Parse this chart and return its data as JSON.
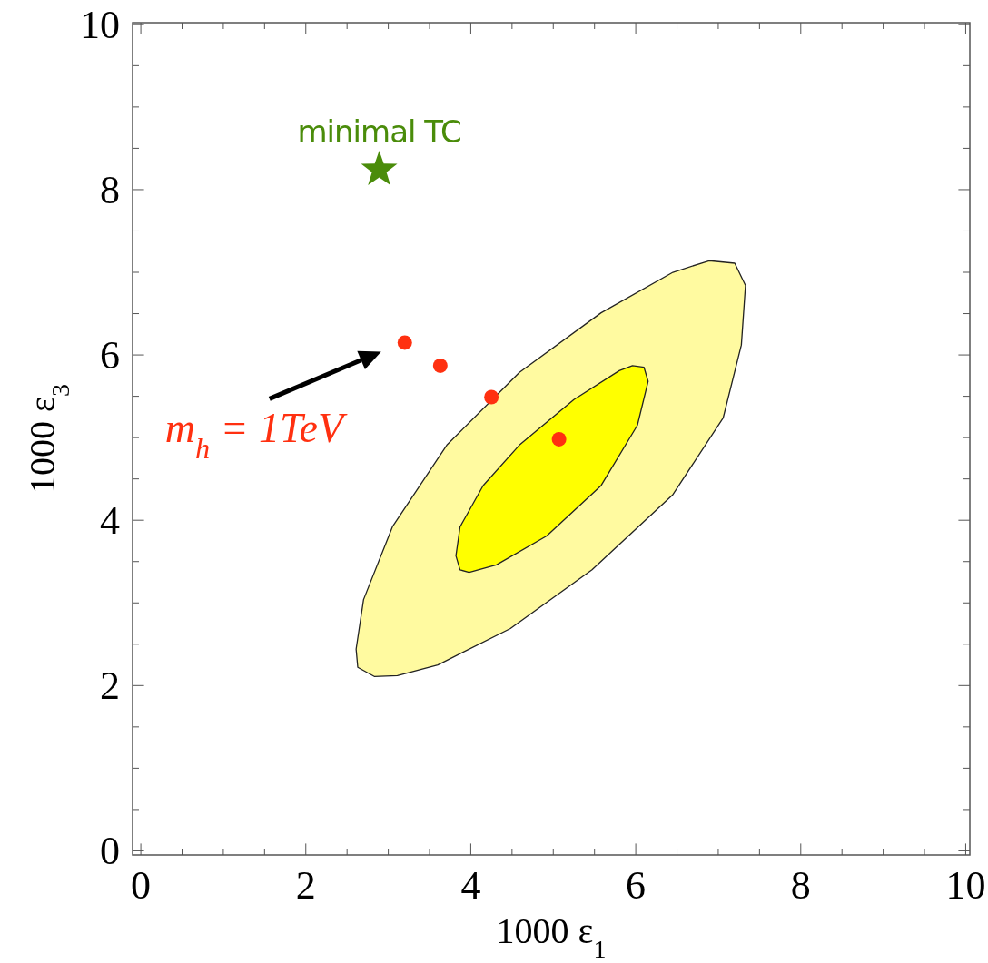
{
  "chart_data": {
    "type": "scatter",
    "xlabel": "1000 ε$_{1}$",
    "ylabel": "1000 ε$_{3}$",
    "xlim": [
      -0.1,
      10.05
    ],
    "ylim": [
      -0.05,
      10.02
    ],
    "xticks": [
      0,
      {
        "value": 0.5,
        "label": null
      },
      {
        "value": 1,
        "label": null
      },
      {
        "value": 1.5,
        "label": null
      },
      2,
      {
        "value": 2.5,
        "label": null
      },
      {
        "value": 3,
        "label": null
      },
      {
        "value": 3.5,
        "label": null
      },
      4,
      {
        "value": 4.5,
        "label": null
      },
      {
        "value": 5,
        "label": null
      },
      {
        "value": 5.5,
        "label": null
      },
      6,
      {
        "value": 6.5,
        "label": null
      },
      {
        "value": 7,
        "label": null
      },
      {
        "value": 7.5,
        "label": null
      },
      8,
      {
        "value": 8.5,
        "label": null
      },
      {
        "value": 9,
        "label": null
      },
      {
        "value": 9.5,
        "label": null
      },
      10
    ],
    "yticks": [
      0,
      {
        "value": 0.5,
        "label": null
      },
      {
        "value": 1,
        "label": null
      },
      {
        "value": 1.5,
        "label": null
      },
      2,
      {
        "value": 2.5,
        "label": null
      },
      {
        "value": 3,
        "label": null
      },
      {
        "value": 3.5,
        "label": null
      },
      4,
      {
        "value": 4.5,
        "label": null
      },
      {
        "value": 5,
        "label": null
      },
      {
        "value": 5.5,
        "label": null
      },
      6,
      {
        "value": 6.5,
        "label": null
      },
      {
        "value": 7,
        "label": null
      },
      {
        "value": 7.5,
        "label": null
      },
      8,
      {
        "value": 8.5,
        "label": null
      },
      {
        "value": 9,
        "label": null
      },
      {
        "value": 9.5,
        "label": null
      },
      10
    ],
    "grid": false,
    "series": [
      {
        "type": "area",
        "color": "#fffaa0",
        "x": [
          2.61,
          2.63,
          2.83,
          3.11,
          3.6,
          4.48,
          5.47,
          6.45,
          7.06,
          7.28,
          7.33,
          7.2,
          6.89,
          6.45,
          5.58,
          4.59,
          3.71,
          3.05,
          2.7
        ],
        "values": [
          2.44,
          2.22,
          2.11,
          2.12,
          2.25,
          2.69,
          3.4,
          4.31,
          5.24,
          6.12,
          6.84,
          7.11,
          7.14,
          7.0,
          6.51,
          5.79,
          4.91,
          3.92,
          3.04
        ]
      },
      {
        "type": "area",
        "color": "#ffff00",
        "x": [
          3.82,
          3.87,
          3.98,
          4.31,
          4.92,
          5.58,
          6.02,
          6.15,
          6.1,
          5.96,
          5.8,
          5.25,
          4.59,
          4.15,
          3.87
        ],
        "values": [
          3.57,
          3.4,
          3.37,
          3.46,
          3.81,
          4.42,
          5.15,
          5.68,
          5.85,
          5.87,
          5.81,
          5.46,
          4.91,
          4.42,
          3.92
        ]
      },
      {
        "marker": "circle",
        "color": "#ff3010",
        "x": [
          3.2,
          3.63,
          4.25,
          5.07
        ],
        "values": [
          6.15,
          5.87,
          5.49,
          4.98
        ]
      },
      {
        "marker": "star",
        "name": "minimal TC",
        "color": "#4a8c0a",
        "x": [
          2.89
        ],
        "values": [
          8.24
        ]
      }
    ],
    "annotations": [
      {
        "text": "m$_{h}$ = 1TeV",
        "x": 3.2,
        "y": 6.15
      }
    ]
  }
}
